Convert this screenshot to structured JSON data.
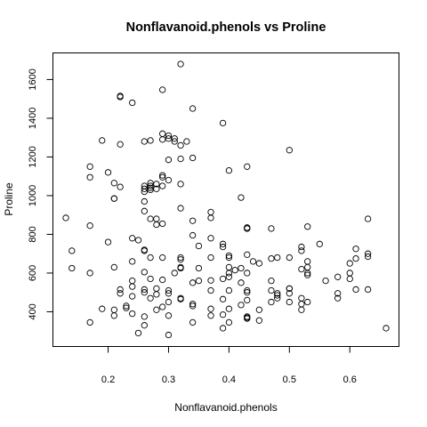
{
  "chart_data": {
    "type": "scatter",
    "title": "Nonflavanoid.phenols vs Proline",
    "xlabel": "Nonflavanoid.phenols",
    "ylabel": "Proline",
    "xlim": [
      0.13,
      0.66
    ],
    "ylim": [
      278,
      1680
    ],
    "xticks": [
      "0.2",
      "0.3",
      "0.4",
      "0.5",
      "0.6"
    ],
    "yticks": [
      "400",
      "600",
      "800",
      "1000",
      "1200",
      "1400",
      "1600"
    ],
    "grid": false,
    "marker": "open-circle",
    "colors": {
      "points": "#000000",
      "axes": "#000000",
      "background": "#ffffff"
    },
    "points": [
      [
        0.13,
        885
      ],
      [
        0.14,
        715
      ],
      [
        0.14,
        625
      ],
      [
        0.17,
        1150
      ],
      [
        0.17,
        1095
      ],
      [
        0.17,
        845
      ],
      [
        0.17,
        600
      ],
      [
        0.17,
        345
      ],
      [
        0.19,
        1285
      ],
      [
        0.19,
        415
      ],
      [
        0.2,
        1120
      ],
      [
        0.2,
        760
      ],
      [
        0.21,
        1065
      ],
      [
        0.21,
        985
      ],
      [
        0.21,
        985
      ],
      [
        0.21,
        630
      ],
      [
        0.21,
        410
      ],
      [
        0.21,
        380
      ],
      [
        0.22,
        1515
      ],
      [
        0.22,
        1510
      ],
      [
        0.22,
        1265
      ],
      [
        0.22,
        1045
      ],
      [
        0.22,
        515
      ],
      [
        0.22,
        495
      ],
      [
        0.23,
        430
      ],
      [
        0.23,
        420
      ],
      [
        0.24,
        1480
      ],
      [
        0.24,
        780
      ],
      [
        0.24,
        660
      ],
      [
        0.24,
        560
      ],
      [
        0.24,
        530
      ],
      [
        0.24,
        480
      ],
      [
        0.24,
        390
      ],
      [
        0.25,
        290
      ],
      [
        0.25,
        770
      ],
      [
        0.26,
        1280
      ],
      [
        0.26,
        1050
      ],
      [
        0.26,
        1035
      ],
      [
        0.26,
        1020
      ],
      [
        0.26,
        970
      ],
      [
        0.26,
        920
      ],
      [
        0.26,
        720
      ],
      [
        0.26,
        715
      ],
      [
        0.26,
        515
      ],
      [
        0.26,
        500
      ],
      [
        0.26,
        375
      ],
      [
        0.26,
        330
      ],
      [
        0.26,
        605
      ],
      [
        0.27,
        1285
      ],
      [
        0.27,
        1065
      ],
      [
        0.27,
        1050
      ],
      [
        0.27,
        1040
      ],
      [
        0.27,
        1030
      ],
      [
        0.27,
        880
      ],
      [
        0.27,
        680
      ],
      [
        0.27,
        570
      ],
      [
        0.27,
        470
      ],
      [
        0.28,
        1060
      ],
      [
        0.28,
        1035
      ],
      [
        0.28,
        880
      ],
      [
        0.28,
        850
      ],
      [
        0.28,
        520
      ],
      [
        0.28,
        490
      ],
      [
        0.28,
        410
      ],
      [
        0.29,
        1547
      ],
      [
        0.29,
        1320
      ],
      [
        0.29,
        1290
      ],
      [
        0.29,
        1105
      ],
      [
        0.29,
        1095
      ],
      [
        0.29,
        1050
      ],
      [
        0.29,
        855
      ],
      [
        0.29,
        680
      ],
      [
        0.29,
        565
      ],
      [
        0.29,
        425
      ],
      [
        0.3,
        1310
      ],
      [
        0.3,
        1295
      ],
      [
        0.3,
        1185
      ],
      [
        0.3,
        1080
      ],
      [
        0.3,
        510
      ],
      [
        0.3,
        495
      ],
      [
        0.3,
        450
      ],
      [
        0.3,
        380
      ],
      [
        0.3,
        280
      ],
      [
        0.31,
        1295
      ],
      [
        0.31,
        1280
      ],
      [
        0.31,
        600
      ],
      [
        0.32,
        1680
      ],
      [
        0.32,
        1260
      ],
      [
        0.32,
        1190
      ],
      [
        0.32,
        1060
      ],
      [
        0.32,
        935
      ],
      [
        0.32,
        680
      ],
      [
        0.32,
        670
      ],
      [
        0.32,
        630
      ],
      [
        0.32,
        625
      ],
      [
        0.32,
        470
      ],
      [
        0.32,
        465
      ],
      [
        0.33,
        1280
      ],
      [
        0.34,
        1450
      ],
      [
        0.34,
        1195
      ],
      [
        0.34,
        870
      ],
      [
        0.34,
        795
      ],
      [
        0.34,
        550
      ],
      [
        0.34,
        440
      ],
      [
        0.34,
        430
      ],
      [
        0.34,
        345
      ],
      [
        0.35,
        740
      ],
      [
        0.35,
        625
      ],
      [
        0.35,
        560
      ],
      [
        0.37,
        915
      ],
      [
        0.37,
        885
      ],
      [
        0.37,
        780
      ],
      [
        0.37,
        680
      ],
      [
        0.37,
        562
      ],
      [
        0.37,
        510
      ],
      [
        0.37,
        415
      ],
      [
        0.37,
        380
      ],
      [
        0.39,
        1375
      ],
      [
        0.39,
        750
      ],
      [
        0.39,
        735
      ],
      [
        0.39,
        570
      ],
      [
        0.39,
        465
      ],
      [
        0.39,
        385
      ],
      [
        0.39,
        315
      ],
      [
        0.4,
        1130
      ],
      [
        0.4,
        690
      ],
      [
        0.4,
        680
      ],
      [
        0.4,
        630
      ],
      [
        0.4,
        600
      ],
      [
        0.4,
        580
      ],
      [
        0.4,
        510
      ],
      [
        0.4,
        415
      ],
      [
        0.4,
        345
      ],
      [
        0.41,
        615
      ],
      [
        0.42,
        990
      ],
      [
        0.42,
        625
      ],
      [
        0.42,
        550
      ],
      [
        0.42,
        435
      ],
      [
        0.43,
        1150
      ],
      [
        0.43,
        835
      ],
      [
        0.43,
        830
      ],
      [
        0.43,
        830
      ],
      [
        0.43,
        695
      ],
      [
        0.43,
        600
      ],
      [
        0.43,
        510
      ],
      [
        0.43,
        500
      ],
      [
        0.43,
        460
      ],
      [
        0.43,
        375
      ],
      [
        0.43,
        370
      ],
      [
        0.43,
        365
      ],
      [
        0.44,
        660
      ],
      [
        0.45,
        650
      ],
      [
        0.45,
        410
      ],
      [
        0.45,
        355
      ],
      [
        0.47,
        830
      ],
      [
        0.47,
        675
      ],
      [
        0.47,
        560
      ],
      [
        0.47,
        510
      ],
      [
        0.47,
        450
      ],
      [
        0.48,
        680
      ],
      [
        0.48,
        495
      ],
      [
        0.48,
        485
      ],
      [
        0.48,
        470
      ],
      [
        0.5,
        1235
      ],
      [
        0.5,
        680
      ],
      [
        0.5,
        520
      ],
      [
        0.5,
        520
      ],
      [
        0.5,
        495
      ],
      [
        0.5,
        450
      ],
      [
        0.52,
        735
      ],
      [
        0.52,
        715
      ],
      [
        0.52,
        620
      ],
      [
        0.52,
        470
      ],
      [
        0.52,
        440
      ],
      [
        0.52,
        410
      ],
      [
        0.53,
        840
      ],
      [
        0.53,
        660
      ],
      [
        0.53,
        630
      ],
      [
        0.53,
        600
      ],
      [
        0.53,
        590
      ],
      [
        0.53,
        450
      ],
      [
        0.55,
        750
      ],
      [
        0.56,
        560
      ],
      [
        0.58,
        580
      ],
      [
        0.58,
        495
      ],
      [
        0.58,
        470
      ],
      [
        0.6,
        650
      ],
      [
        0.6,
        600
      ],
      [
        0.6,
        570
      ],
      [
        0.61,
        725
      ],
      [
        0.61,
        675
      ],
      [
        0.61,
        515
      ],
      [
        0.63,
        880
      ],
      [
        0.63,
        700
      ],
      [
        0.63,
        685
      ],
      [
        0.63,
        515
      ],
      [
        0.66,
        315
      ]
    ]
  }
}
